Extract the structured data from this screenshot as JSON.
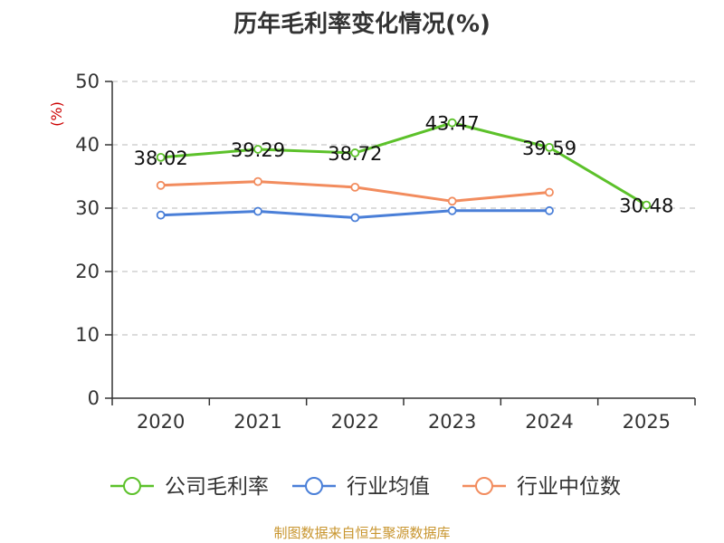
{
  "chart_data": {
    "type": "line",
    "title": "历年毛利率变化情况(%)",
    "ylabel": "(%)",
    "xlabel": "",
    "categories": [
      "2020",
      "2021",
      "2022",
      "2023",
      "2024",
      "2025"
    ],
    "ylim": [
      0,
      50
    ],
    "yticks": [
      0,
      10,
      20,
      30,
      40,
      50
    ],
    "grid": true,
    "legend_position": "bottom",
    "series": [
      {
        "name": "公司毛利率",
        "color": "#5cc12a",
        "values": [
          38.02,
          39.29,
          38.72,
          43.47,
          39.59,
          30.48
        ],
        "labels": [
          "38.02",
          "39.29",
          "38.72",
          "43.47",
          "39.59",
          "30.48"
        ]
      },
      {
        "name": "行业均值",
        "color": "#4a7fd8",
        "values": [
          28.9,
          29.5,
          28.5,
          29.6,
          29.6,
          null
        ]
      },
      {
        "name": "行业中位数",
        "color": "#f28c5e",
        "values": [
          33.6,
          34.2,
          33.3,
          31.1,
          32.5,
          null
        ]
      }
    ]
  },
  "footer": {
    "source": "制图数据来自恒生聚源数据库"
  }
}
